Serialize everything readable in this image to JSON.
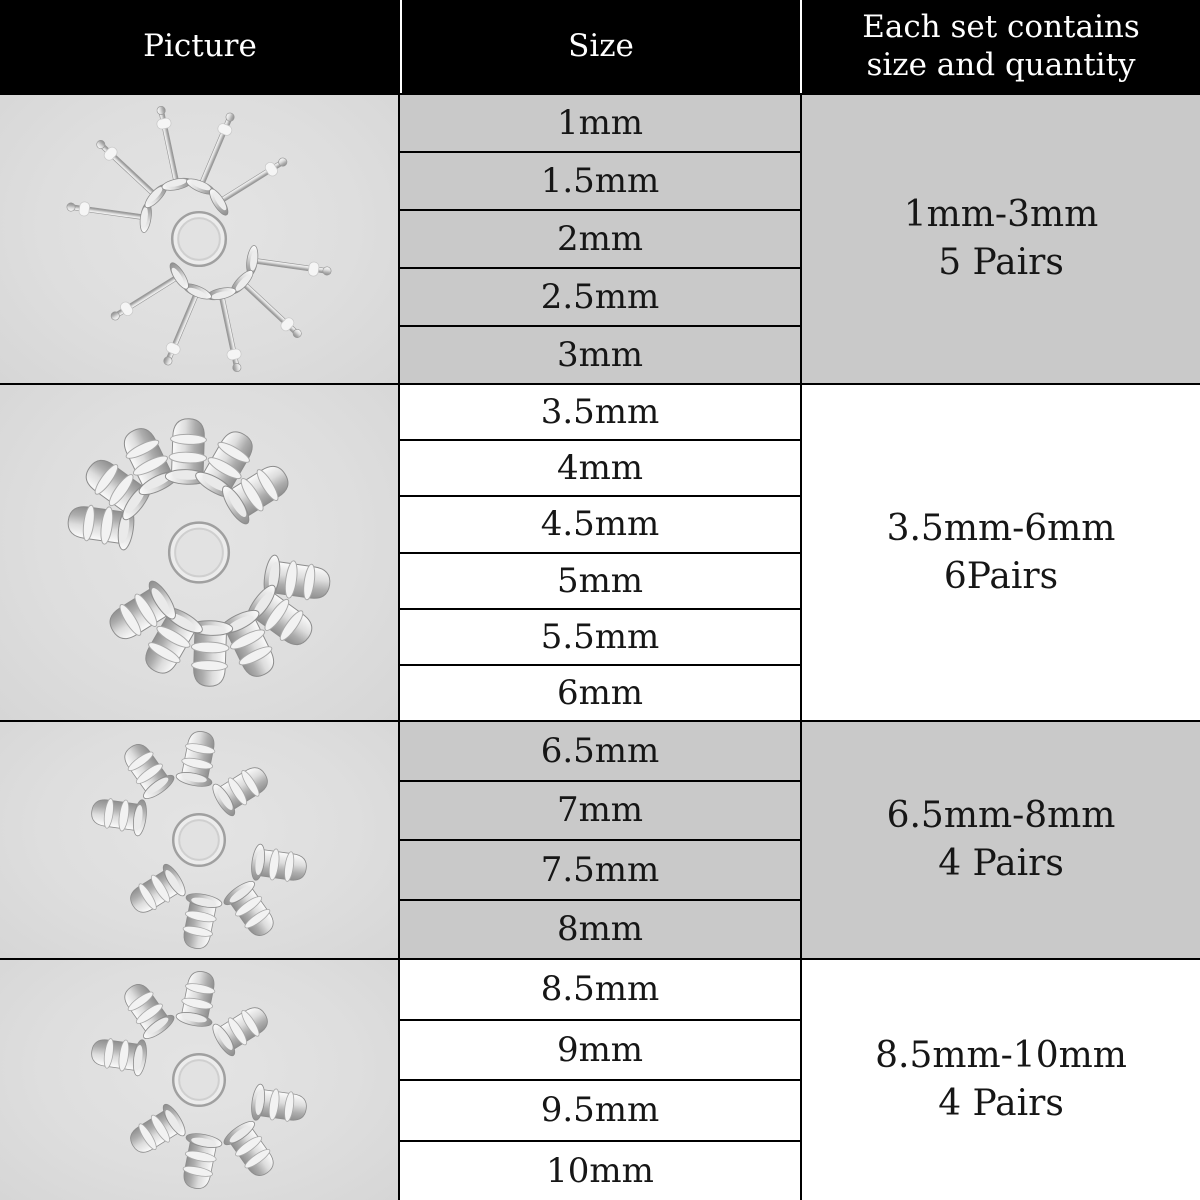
{
  "header": {
    "picture_label": "Picture",
    "size_label": "Size",
    "set_label": "Each set contains size and quantity"
  },
  "groups": [
    {
      "name": "1mm-3mm set",
      "sizes": [
        "1mm",
        "1.5mm",
        "2mm",
        "2.5mm",
        "3mm"
      ],
      "set_range": "1mm-3mm",
      "set_quantity": "5 Pairs",
      "shaded": true,
      "picture": {
        "style": "pin",
        "pairs": 5,
        "description": "10 silver flat-disc earring posts fanned in an S shape around a metal ring"
      }
    },
    {
      "name": "3.5mm-6mm set",
      "sizes": [
        "3.5mm",
        "4mm",
        "4.5mm",
        "5mm",
        "5.5mm",
        "6mm"
      ],
      "set_range": "3.5mm-6mm",
      "set_quantity": "6Pairs",
      "shaded": false,
      "picture": {
        "style": "plug",
        "pairs": 6,
        "description": "12 silver bullet-shaped earring backs fanned in an S shape around a metal ring"
      }
    },
    {
      "name": "6.5mm-8mm set",
      "sizes": [
        "6.5mm",
        "7mm",
        "7.5mm",
        "8mm"
      ],
      "set_range": "6.5mm-8mm",
      "set_quantity": "4 Pairs",
      "shaded": true,
      "picture": {
        "style": "plug",
        "pairs": 4,
        "description": "8 silver bullet-shaped earring backs fanned in an S shape around a metal ring"
      }
    },
    {
      "name": "8.5mm-10mm set",
      "sizes": [
        "8.5mm",
        "9mm",
        "9.5mm",
        "10mm"
      ],
      "set_range": "8.5mm-10mm",
      "set_quantity": "4 Pairs",
      "shaded": false,
      "picture": {
        "style": "plug",
        "pairs": 4,
        "description": "8 silver bullet-shaped earring backs fanned in an S shape around a metal ring"
      }
    }
  ],
  "colors": {
    "header_bg": "#000000",
    "header_text": "#ffffff",
    "header_divider": "#ffffff",
    "shaded_cell_bg": "#c9c9c9",
    "plain_cell_bg": "#ffffff",
    "picture_cell_bg": "#dedede",
    "grid_border": "#000000",
    "text": "#161616",
    "metal": "#c0c0c0"
  }
}
